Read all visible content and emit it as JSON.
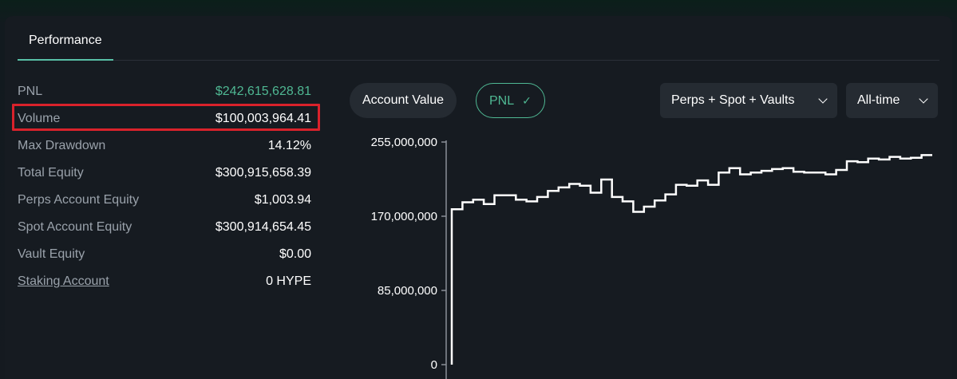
{
  "tab": {
    "label": "Performance"
  },
  "stats": [
    {
      "label": "PNL",
      "value": "$242,615,628.81",
      "color": "#4fb893"
    },
    {
      "label": "Volume",
      "value": "$100,003,964.41"
    },
    {
      "label": "Max Drawdown",
      "value": "14.12%"
    },
    {
      "label": "Total Equity",
      "value": "$300,915,658.39"
    },
    {
      "label": "Perps Account Equity",
      "value": "$1,003.94"
    },
    {
      "label": "Spot Account Equity",
      "value": "$300,914,654.45"
    },
    {
      "label": "Vault Equity",
      "value": "$0.00"
    },
    {
      "label": "Staking Account",
      "value": "0 HYPE"
    }
  ],
  "controls": {
    "account_value_label": "Account Value",
    "pnl_label": "PNL",
    "filter_label": "Perps + Spot + Vaults",
    "range_label": "All-time"
  },
  "chart_data": {
    "type": "line",
    "title": "",
    "xlabel": "",
    "ylabel": "",
    "ylim": [
      0,
      255000000
    ],
    "y_ticks": [
      "255,000,000",
      "170,000,000",
      "85,000,000",
      "0"
    ],
    "y_tick_values": [
      255000000,
      170000000,
      85000000,
      0
    ],
    "step": true,
    "series": [
      {
        "values": [
          0,
          178000000,
          186000000,
          189000000,
          184000000,
          194000000,
          194000000,
          189000000,
          187000000,
          192000000,
          199000000,
          203000000,
          207000000,
          205000000,
          197000000,
          212000000,
          192000000,
          187000000,
          175000000,
          181000000,
          188000000,
          195000000,
          206000000,
          205000000,
          211000000,
          206000000,
          220000000,
          225000000,
          218000000,
          220000000,
          222000000,
          224000000,
          225000000,
          221000000,
          220000000,
          220000000,
          218000000,
          223000000,
          233000000,
          232000000,
          236000000,
          235000000,
          238000000,
          236000000,
          237000000,
          240000000
        ]
      }
    ],
    "line_color": "#ffffff",
    "axis_color": "#8a9098"
  }
}
